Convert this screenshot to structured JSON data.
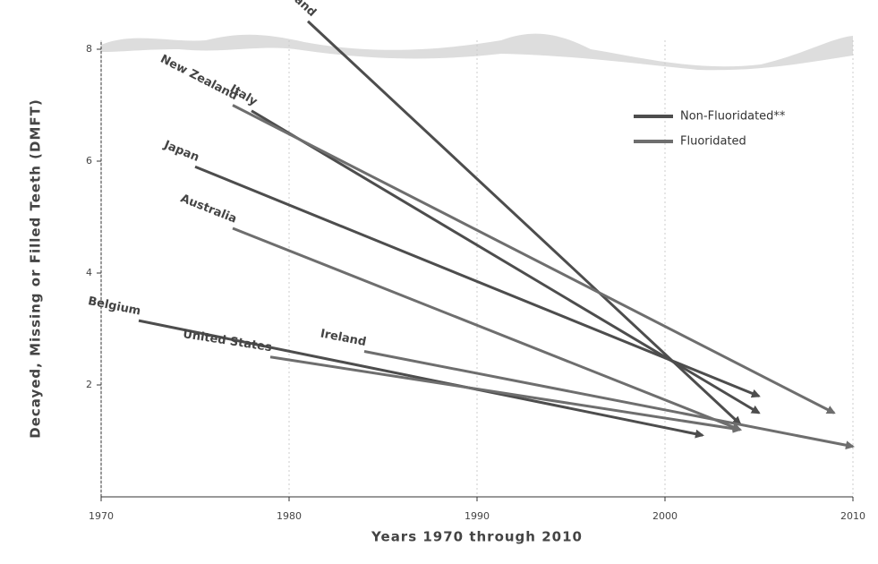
{
  "chart_data": {
    "type": "arrow",
    "xlabel": "Years 1970 through 2010",
    "ylabel": "Decayed, Missing or Filled Teeth (DMFT)",
    "xlim": [
      1970,
      2010
    ],
    "xticks": [
      1970,
      1980,
      1990,
      2000,
      2010
    ],
    "ylim": [
      0,
      8.8
    ],
    "yticks": [
      2,
      4,
      6,
      8
    ],
    "grid": true,
    "legend": "upper right",
    "series": [
      {
        "name": "Non-Fluoridated**",
        "color": "#4d4d4d",
        "countries": [
          {
            "label": "Iceland",
            "x": [
              1981,
              2004
            ],
            "values": [
              8.5,
              1.3
            ]
          },
          {
            "label": "Italy",
            "x": [
              1978,
              2005
            ],
            "values": [
              6.9,
              1.5
            ]
          },
          {
            "label": "Japan",
            "x": [
              1975,
              2005
            ],
            "values": [
              5.9,
              1.8
            ]
          },
          {
            "label": "Belgium",
            "x": [
              1972,
              2002
            ],
            "values": [
              3.15,
              1.1
            ]
          }
        ]
      },
      {
        "name": "Fluoridated",
        "color": "#6e6e6e",
        "countries": [
          {
            "label": "New Zealand",
            "x": [
              1977,
              2009
            ],
            "values": [
              7.0,
              1.5
            ]
          },
          {
            "label": "Australia",
            "x": [
              1977,
              2004
            ],
            "values": [
              4.8,
              1.2
            ]
          },
          {
            "label": "United States",
            "x": [
              1979,
              2004
            ],
            "values": [
              2.5,
              1.2
            ]
          },
          {
            "label": "Ireland",
            "x": [
              1984,
              2010
            ],
            "values": [
              2.6,
              0.9
            ]
          }
        ]
      }
    ]
  }
}
